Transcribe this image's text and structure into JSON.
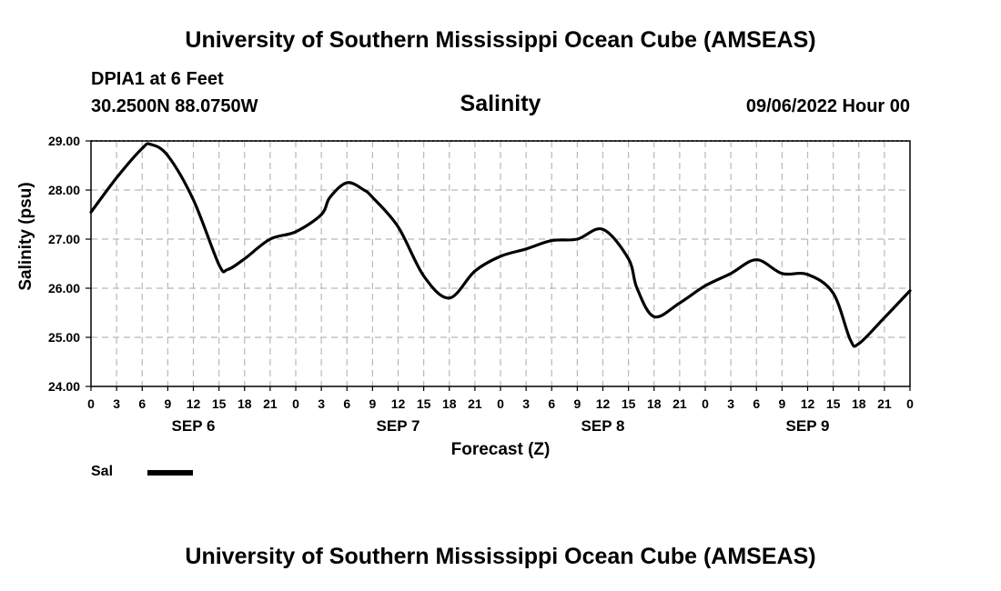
{
  "header": {
    "title": "University of Southern Mississippi Ocean Cube (AMSEAS)",
    "station": "DPIA1 at 6 Feet",
    "coords": "30.2500N  88.0750W",
    "datetime": "09/06/2022 Hour 00"
  },
  "footer": {
    "title": "University of Southern Mississippi Ocean Cube (AMSEAS)"
  },
  "legend": {
    "label": "Sal",
    "color": "#000000"
  },
  "chart_data": {
    "type": "line",
    "title": "Salinity",
    "xlabel": "Forecast (Z)",
    "ylabel": "Salinity (psu)",
    "ylim": [
      24.0,
      29.0
    ],
    "xlim": [
      0,
      96
    ],
    "yticks": [
      "24.00",
      "25.00",
      "26.00",
      "27.00",
      "28.00",
      "29.00"
    ],
    "xtick_labels": [
      "0",
      "3",
      "6",
      "9",
      "12",
      "15",
      "18",
      "21",
      "0",
      "3",
      "6",
      "9",
      "12",
      "15",
      "18",
      "21",
      "0",
      "3",
      "6",
      "9",
      "12",
      "15",
      "18",
      "21",
      "0",
      "3",
      "6",
      "9",
      "12",
      "15",
      "18",
      "21",
      "0"
    ],
    "day_labels": [
      "SEP 6",
      "SEP 7",
      "SEP 8",
      "SEP 9"
    ],
    "grid": true,
    "series": [
      {
        "name": "Sal",
        "x": [
          0,
          3,
          6,
          7,
          9,
          12,
          15,
          16,
          18,
          21,
          24,
          27,
          28,
          30,
          32,
          33,
          36,
          39,
          42,
          45,
          48,
          51,
          54,
          57,
          60,
          63,
          64,
          66,
          69,
          72,
          75,
          78,
          81,
          84,
          87,
          89,
          90,
          93,
          96
        ],
        "values": [
          27.55,
          28.25,
          28.85,
          28.93,
          28.7,
          27.8,
          26.48,
          26.38,
          26.6,
          27.0,
          27.15,
          27.5,
          27.85,
          28.15,
          28.0,
          27.85,
          27.25,
          26.25,
          25.8,
          26.35,
          26.65,
          26.8,
          26.97,
          27.0,
          27.2,
          26.6,
          26.0,
          25.42,
          25.7,
          26.05,
          26.3,
          26.58,
          26.3,
          26.28,
          25.9,
          24.95,
          24.87,
          25.4,
          25.95
        ]
      }
    ]
  }
}
